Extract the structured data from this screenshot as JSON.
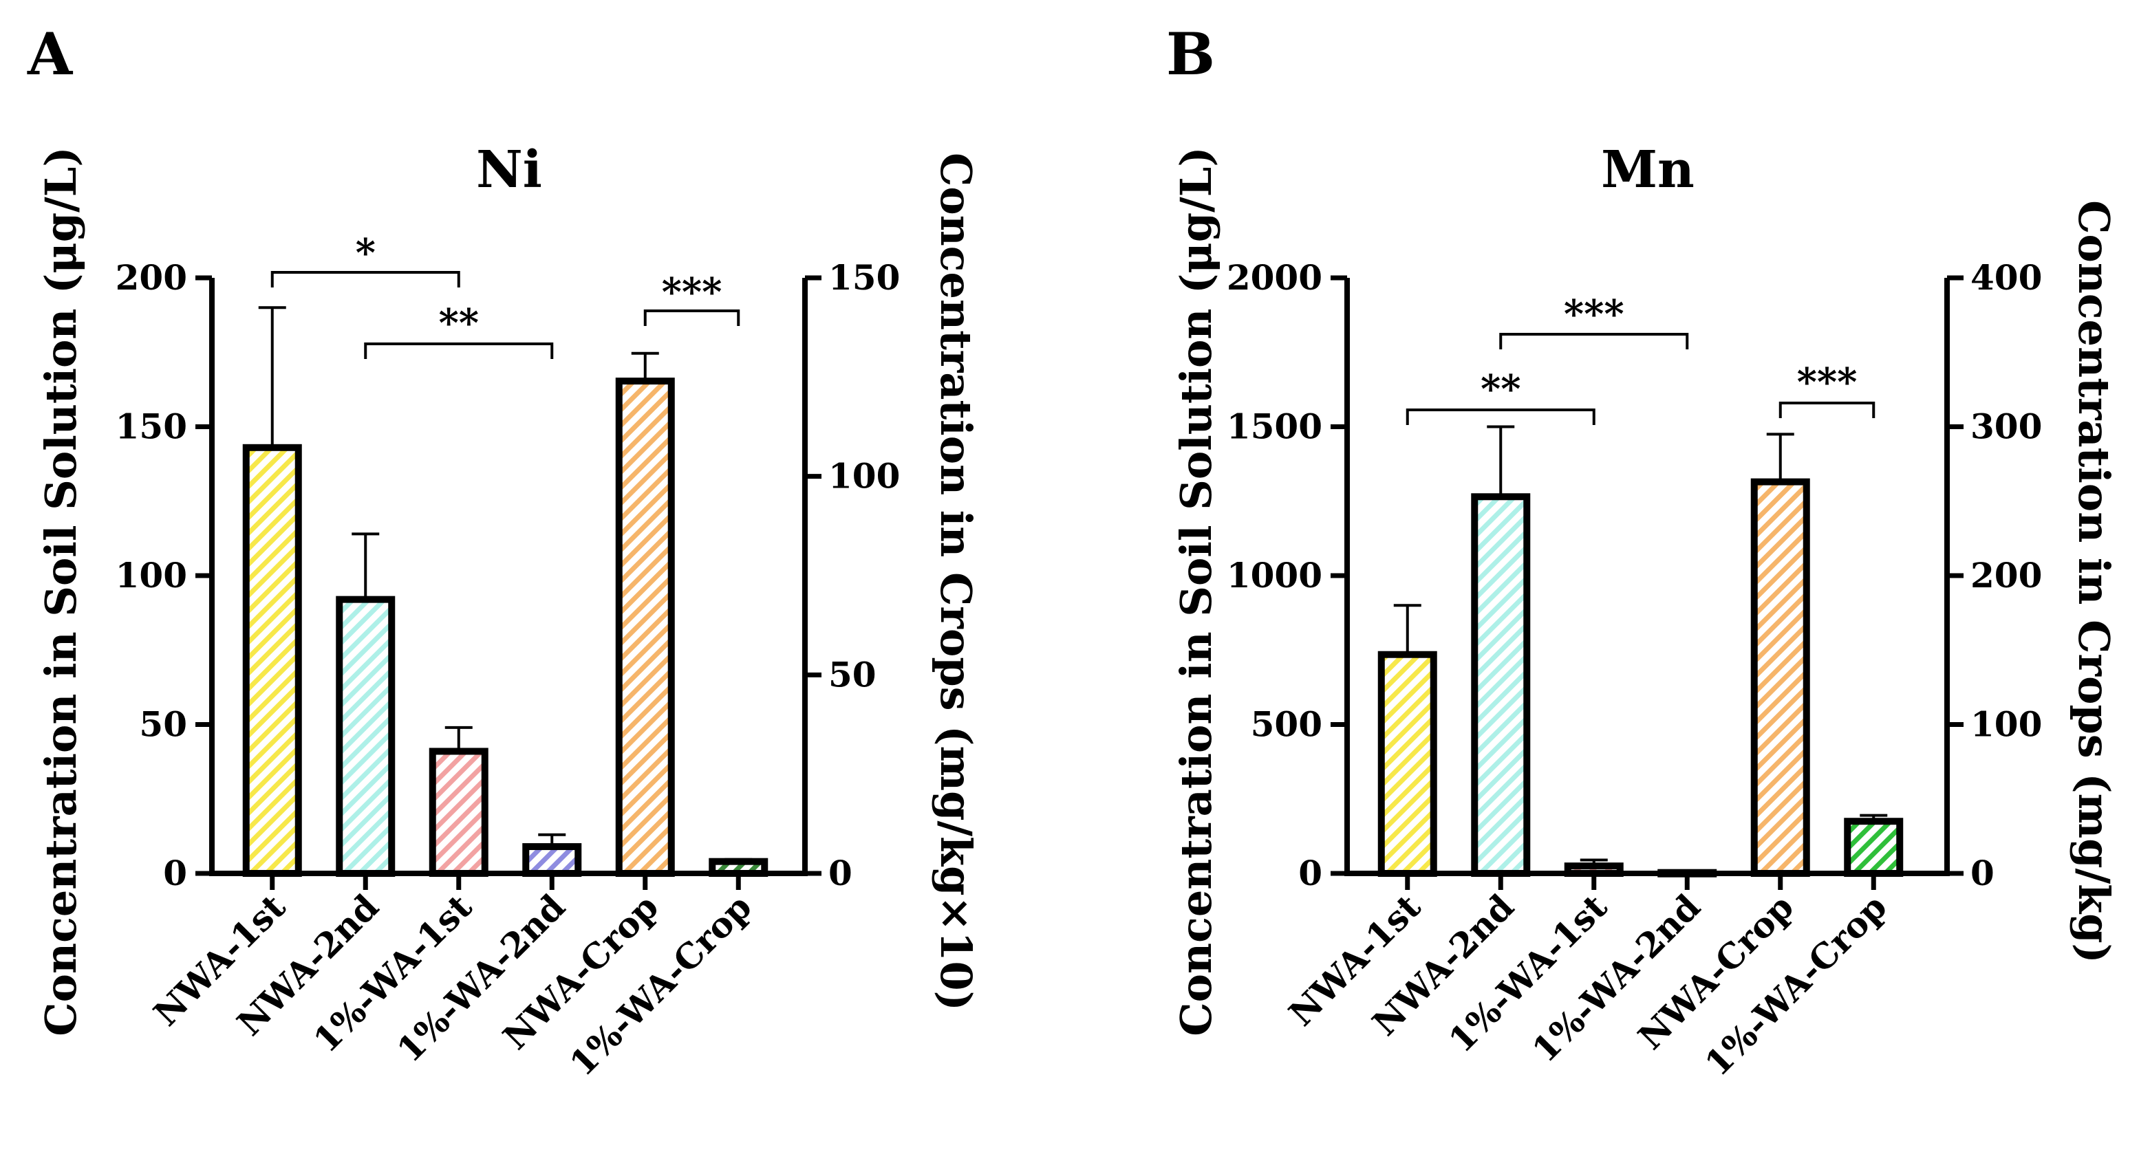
{
  "chart_data": [
    {
      "type": "bar",
      "panel_label": "A",
      "title": "Ni",
      "ylabel": "Concentration in Soil Solution (μg/L)",
      "ylabel_right": "Concentration in Crops (mg/kg×10)",
      "ylim": [
        0,
        200
      ],
      "ylim_right": [
        0,
        150
      ],
      "yticks": [
        "0",
        "50",
        "100",
        "150",
        "200"
      ],
      "yticks_right": [
        "0",
        "50",
        "100",
        "150"
      ],
      "categories": [
        "NWA-1st",
        "NWA-2nd",
        "1%-WA-1st",
        "1%-WA-2nd",
        "NWA-Crop",
        "1%-WA-Crop"
      ],
      "axis": [
        "left",
        "left",
        "left",
        "left",
        "right",
        "right"
      ],
      "values": [
        143,
        92,
        41,
        9,
        124,
        3
      ],
      "errors": [
        47,
        22,
        8,
        4,
        7,
        0.5
      ],
      "colors": [
        "#f7e84a",
        "#aef0e8",
        "#f2a2a2",
        "#8e8ce0",
        "#f6b56a",
        "#3a8a3a"
      ],
      "significance": [
        {
          "label": "*",
          "from": 0,
          "to": 2
        },
        {
          "label": "**",
          "from": 1,
          "to": 3
        },
        {
          "label": "***",
          "from": 4,
          "to": 5
        }
      ]
    },
    {
      "type": "bar",
      "panel_label": "B",
      "title": "Mn",
      "ylabel": "Concentration in Soil Solution (μg/L)",
      "ylabel_right": "Concentration in Crops (mg/kg)",
      "ylim": [
        0,
        2000
      ],
      "ylim_right": [
        0,
        400
      ],
      "yticks": [
        "0",
        "500",
        "1000",
        "1500",
        "2000"
      ],
      "yticks_right": [
        "0",
        "100",
        "200",
        "300",
        "400"
      ],
      "categories": [
        "NWA-1st",
        "NWA-2nd",
        "1%-WA-1st",
        "1%-WA-2nd",
        "NWA-Crop",
        "1%-WA-Crop"
      ],
      "axis": [
        "left",
        "left",
        "left",
        "left",
        "right",
        "right"
      ],
      "values": [
        735,
        1265,
        25,
        3,
        263,
        35
      ],
      "errors": [
        165,
        235,
        20,
        3,
        32,
        4
      ],
      "colors": [
        "#f7e84a",
        "#aef0e8",
        "#f2a2a2",
        "#8e8ce0",
        "#f6b56a",
        "#2fbf3a"
      ],
      "significance": [
        {
          "label": "**",
          "from": 0,
          "to": 2
        },
        {
          "label": "***",
          "from": 1,
          "to": 3
        },
        {
          "label": "***",
          "from": 4,
          "to": 5
        }
      ]
    }
  ]
}
